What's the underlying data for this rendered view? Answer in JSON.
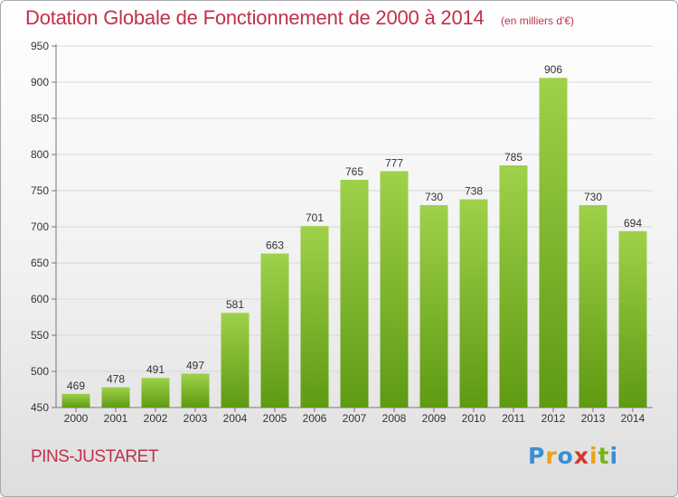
{
  "title": "Dotation Globale de Fonctionnement de 2000 à 2014",
  "subtitle": "(en milliers d'€)",
  "commune": "PINS-JUSTARET",
  "logo": {
    "letters": [
      "P",
      "r",
      "o",
      "x",
      "i",
      "t",
      "i"
    ],
    "colors": [
      "#3a8fd4",
      "#e8a317",
      "#3a8fd4",
      "#d9342b",
      "#e8a317",
      "#7ab317",
      "#3a8fd4"
    ]
  },
  "colors": {
    "bar_top": "#9fd14a",
    "bar_bottom": "#5e9a12",
    "title": "#c0314a"
  },
  "chart_data": {
    "type": "bar",
    "categories": [
      "2000",
      "2001",
      "2002",
      "2003",
      "2004",
      "2005",
      "2006",
      "2007",
      "2008",
      "2009",
      "2010",
      "2011",
      "2012",
      "2013",
      "2014"
    ],
    "values": [
      469,
      478,
      491,
      497,
      581,
      663,
      701,
      765,
      777,
      730,
      738,
      785,
      906,
      730,
      694
    ],
    "title": "Dotation Globale de Fonctionnement de 2000 à 2014",
    "subtitle": "(en milliers d'€)",
    "xlabel": "",
    "ylabel": "",
    "ylim": [
      450,
      950
    ],
    "yticks": [
      450,
      500,
      550,
      600,
      650,
      700,
      750,
      800,
      850,
      900,
      950
    ],
    "grid": true
  }
}
